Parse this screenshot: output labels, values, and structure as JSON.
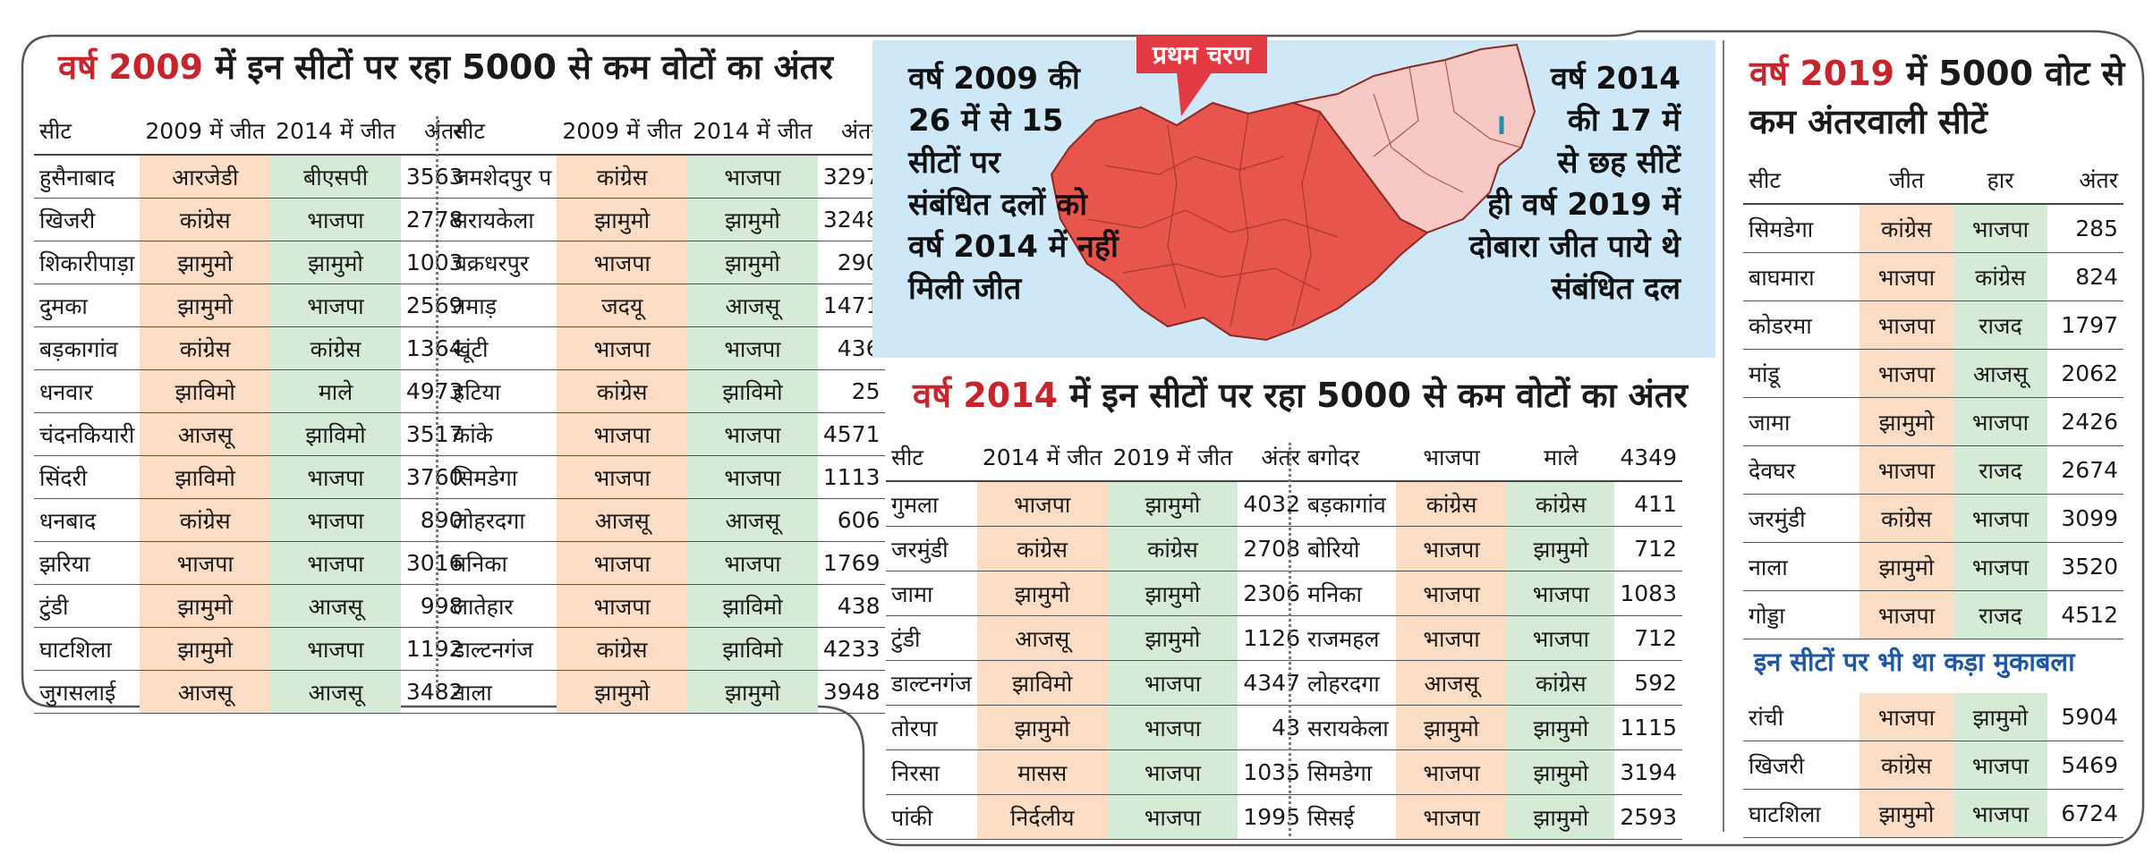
{
  "left": {
    "title_year": "वर्ष 2009",
    "title_rest": " में इन सीटों पर रहा 5000 से कम वोटों का अंतर",
    "headers": [
      "सीट",
      "2009 में जीत",
      "2014 में जीत",
      "अंतर"
    ],
    "rows_a": [
      [
        "हुसैनाबाद",
        "आरजेडी",
        "बीएसपी",
        "3563"
      ],
      [
        "खिजरी",
        "कांग्रेस",
        "भाजपा",
        "2778"
      ],
      [
        "शिकारीपाड़ा",
        "झामुमो",
        "झामुमो",
        "1003"
      ],
      [
        "दुमका",
        "झामुमो",
        "भाजपा",
        "2569"
      ],
      [
        "बड़कागांव",
        "कांग्रेस",
        "कांग्रेस",
        "1364"
      ],
      [
        "धनवार",
        "झाविमो",
        "माले",
        "4973"
      ],
      [
        "चंदनकियारी",
        "आजसू",
        "झाविमो",
        "3517"
      ],
      [
        "सिंदरी",
        "झाविमो",
        "भाजपा",
        "3760"
      ],
      [
        "धनबाद",
        "कांग्रेस",
        "भाजपा",
        "890"
      ],
      [
        "झरिया",
        "भाजपा",
        "भाजपा",
        "3016"
      ],
      [
        "टुंडी",
        "झामुमो",
        "आजसू",
        "998"
      ],
      [
        "घाटशिला",
        "झामुमो",
        "भाजपा",
        "1192"
      ],
      [
        "जुगसलाई",
        "आजसू",
        "आजसू",
        "3482"
      ]
    ],
    "rows_b": [
      [
        "जमशेदपुर प",
        "कांग्रेस",
        "भाजपा",
        "3297"
      ],
      [
        "सरायकेला",
        "झामुमो",
        "झामुमो",
        "3248"
      ],
      [
        "चक्रधरपुर",
        "भाजपा",
        "झामुमो",
        "290"
      ],
      [
        "तमाड़",
        "जदयू",
        "आजसू",
        "1471"
      ],
      [
        "खूंटी",
        "भाजपा",
        "भाजपा",
        "436"
      ],
      [
        "हटिया",
        "कांग्रेस",
        "झाविमो",
        "25"
      ],
      [
        "कांके",
        "भाजपा",
        "भाजपा",
        "4571"
      ],
      [
        "सिमडेगा",
        "भाजपा",
        "भाजपा",
        "1113"
      ],
      [
        "लोहरदगा",
        "आजसू",
        "आजसू",
        "606"
      ],
      [
        "मनिका",
        "भाजपा",
        "भाजपा",
        "1769"
      ],
      [
        "लातेहार",
        "भाजपा",
        "झाविमो",
        "438"
      ],
      [
        "डाल्टनगंज",
        "कांग्रेस",
        "झाविमो",
        "4233"
      ],
      [
        "नाला",
        "झामुमो",
        "झामुमो",
        "3948"
      ]
    ]
  },
  "map": {
    "badge": "प्रथम चरण",
    "left_text": [
      "वर्ष 2009 की",
      "26 में से 15",
      "सीटों पर",
      "संबंधित दलों को",
      "वर्ष 2014 में नहीं",
      "मिली जीत"
    ],
    "right_text": [
      "वर्ष 2014",
      "की 17 में",
      "से छह सीटें",
      "ही वर्ष 2019 में",
      "दोबारा जीत पाये थे",
      "संबंधित दल"
    ]
  },
  "middle": {
    "title_year": "वर्ष 2014",
    "title_rest": " में इन सीटों पर रहा 5000 से कम वोटों का अंतर",
    "headers": [
      "सीट",
      "2014 में जीत",
      "2019 में जीत",
      "अंतर"
    ],
    "rows_a": [
      [
        "गुमला",
        "भाजपा",
        "झामुमो",
        "4032"
      ],
      [
        "जरमुंडी",
        "कांग्रेस",
        "कांग्रेस",
        "2708"
      ],
      [
        "जामा",
        "झामुमो",
        "झामुमो",
        "2306"
      ],
      [
        "टुंडी",
        "आजसू",
        "झामुमो",
        "1126"
      ],
      [
        "डाल्टनगंज",
        "झाविमो",
        "भाजपा",
        "4347"
      ],
      [
        "तोरपा",
        "झामुमो",
        "भाजपा",
        "43"
      ],
      [
        "निरसा",
        "मासस",
        "भाजपा",
        "1035"
      ],
      [
        "पांकी",
        "निर्दलीय",
        "भाजपा",
        "1995"
      ]
    ],
    "first_row_b": [
      "बगोदर",
      "भाजपा",
      "माले",
      "4349"
    ],
    "rows_b": [
      [
        "बड़कागांव",
        "कांग्रेस",
        "कांग्रेस",
        "411"
      ],
      [
        "बोरियो",
        "भाजपा",
        "झामुमो",
        "712"
      ],
      [
        "मनिका",
        "भाजपा",
        "भाजपा",
        "1083"
      ],
      [
        "राजमहल",
        "भाजपा",
        "भाजपा",
        "712"
      ],
      [
        "लोहरदगा",
        "आजसू",
        "कांग्रेस",
        "592"
      ],
      [
        "सरायकेला",
        "झामुमो",
        "झामुमो",
        "1115"
      ],
      [
        "सिमडेगा",
        "भाजपा",
        "झामुमो",
        "3194"
      ],
      [
        "सिसई",
        "भाजपा",
        "झामुमो",
        "2593"
      ]
    ]
  },
  "right": {
    "title_year": "वर्ष 2019",
    "title_rest_1": " में 5000 वोट से",
    "title_rest_2": "कम अंतरवाली सीटें",
    "headers": [
      "सीट",
      "जीत",
      "हार",
      "अंतर"
    ],
    "rows": [
      [
        "सिमडेगा",
        "कांग्रेस",
        "भाजपा",
        "285"
      ],
      [
        "बाघमारा",
        "भाजपा",
        "कांग्रेस",
        "824"
      ],
      [
        "कोडरमा",
        "भाजपा",
        "राजद",
        "1797"
      ],
      [
        "मांडू",
        "भाजपा",
        "आजसू",
        "2062"
      ],
      [
        "जामा",
        "झामुमो",
        "भाजपा",
        "2426"
      ],
      [
        "देवघर",
        "भाजपा",
        "राजद",
        "2674"
      ],
      [
        "जरमुंडी",
        "कांग्रेस",
        "भाजपा",
        "3099"
      ],
      [
        "नाला",
        "झामुमो",
        "भाजपा",
        "3520"
      ],
      [
        "गोड्डा",
        "भाजपा",
        "राजद",
        "4512"
      ]
    ],
    "subheading": "इन सीटों पर भी था कड़ा मुकाबला",
    "rows2": [
      [
        "रांची",
        "भाजपा",
        "झामुमो",
        "5904"
      ],
      [
        "खिजरी",
        "कांग्रेस",
        "भाजपा",
        "5469"
      ],
      [
        "घाटशिला",
        "झामुमो",
        "भाजपा",
        "6724"
      ]
    ]
  },
  "colors": {
    "accent_red": "#c8242b",
    "win_orange": "#fbdcc4",
    "win_green": "#d5ebd6",
    "map_bg": "#cfe8f7",
    "map_red": "#e8554c",
    "map_pink": "#f6c9c4",
    "subhead_blue": "#1d57a6"
  }
}
